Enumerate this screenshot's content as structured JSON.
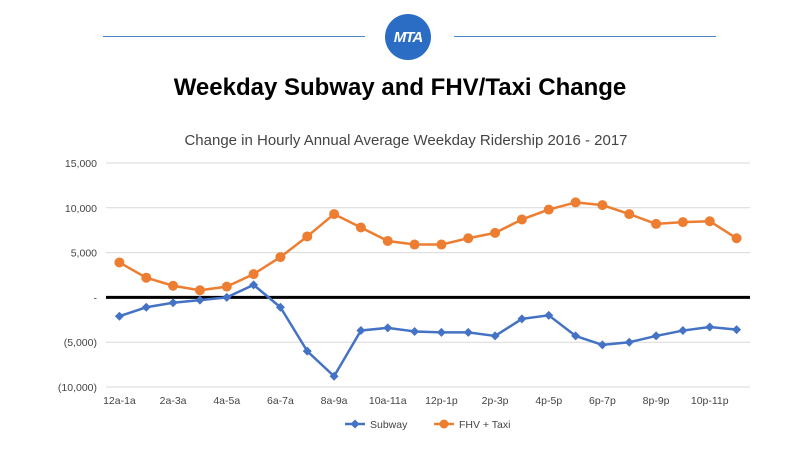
{
  "header": {
    "logo_text": "MTA",
    "main_title": "Weekday Subway and FHV/Taxi Change"
  },
  "colors": {
    "subway": "#4472c4",
    "fhv_taxi": "#ed7d31",
    "zero_line": "#000000",
    "rule": "#4a86c8",
    "logo": "#2b6cc4"
  },
  "chart_data": {
    "type": "line",
    "title": "Change in Hourly Annual Average Weekday Ridership 2016 - 2017",
    "xlabel": "",
    "ylabel": "",
    "ylim": [
      -10000,
      15000
    ],
    "y_ticks": [
      15000,
      10000,
      5000,
      0,
      -5000,
      -10000
    ],
    "y_tick_labels": [
      "15,000",
      "10,000",
      "5,000",
      "-",
      "(5,000)",
      "(10,000)"
    ],
    "categories": [
      "12a-1a",
      "1a-2a",
      "2a-3a",
      "3a-4a",
      "4a-5a",
      "5a-6a",
      "6a-7a",
      "7a-8a",
      "8a-9a",
      "9a-10a",
      "10a-11a",
      "11a-12p",
      "12p-1p",
      "1p-2p",
      "2p-3p",
      "3p-4p",
      "4p-5p",
      "5p-6p",
      "6p-7p",
      "7p-8p",
      "8p-9p",
      "9p-10p",
      "10p-11p",
      "11p-12a"
    ],
    "x_tick_labels": [
      "12a-1a",
      "2a-3a",
      "4a-5a",
      "6a-7a",
      "8a-9a",
      "10a-11a",
      "12p-1p",
      "2p-3p",
      "4p-5p",
      "6p-7p",
      "8p-9p",
      "10p-11p"
    ],
    "grid": true,
    "legend_position": "bottom",
    "series": [
      {
        "name": "Subway",
        "marker": "diamond",
        "values": [
          -2100,
          -1100,
          -600,
          -300,
          0,
          1400,
          -1100,
          -6000,
          -8800,
          -3700,
          -3400,
          -3800,
          -3900,
          -3900,
          -4300,
          -2400,
          -2000,
          -4300,
          -5300,
          -5000,
          -4300,
          -3700,
          -3300,
          -3600
        ]
      },
      {
        "name": "FHV + Taxi",
        "marker": "circle",
        "values": [
          3900,
          2200,
          1300,
          800,
          1200,
          2600,
          4500,
          6800,
          9300,
          7800,
          6300,
          5900,
          5900,
          6600,
          7200,
          8700,
          9800,
          10600,
          10300,
          9300,
          8200,
          8400,
          8500,
          6600
        ]
      }
    ]
  }
}
